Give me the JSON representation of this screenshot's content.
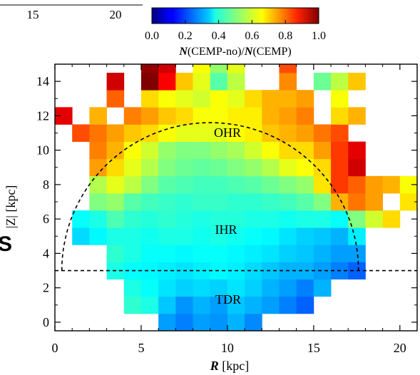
{
  "chart_data": {
    "type": "heatmap",
    "top_axis_fragment": {
      "ticks": [
        "15",
        "20"
      ]
    },
    "colorbar": {
      "label_prefix": "N",
      "label_mid": "(CEMP-no)/",
      "label_prefix2": "N",
      "label_suffix": "(CEMP)",
      "ticks": [
        "0.0",
        "0.2",
        "0.4",
        "0.6",
        "0.8",
        "1.0"
      ],
      "range": [
        0,
        1
      ],
      "colormap": "jet"
    },
    "xlabel_bold": "R",
    "xlabel_rest": " [kpc]",
    "ylabel": "|Z| [kpc]",
    "xlim": [
      0,
      21
    ],
    "ylim": [
      -0.5,
      15
    ],
    "xticks": [
      "0",
      "5",
      "10",
      "15",
      "20"
    ],
    "yticks": [
      "0",
      "2",
      "4",
      "6",
      "8",
      "10",
      "12",
      "14"
    ],
    "cell_size_kpc": 1.0,
    "annotations": [
      "OHR",
      "IHR",
      "TDR"
    ],
    "boundary_line": {
      "style": "dashed",
      "y_const": 3,
      "semicircle_center": [
        9,
        3
      ],
      "semicircle_radius": 8.6
    },
    "cells": [
      {
        "R": 6.5,
        "Z": 0,
        "v": 0.28
      },
      {
        "R": 7.5,
        "Z": 0,
        "v": 0.25
      },
      {
        "R": 8.5,
        "Z": 0,
        "v": 0.28
      },
      {
        "R": 9.5,
        "Z": 0,
        "v": 0.27
      },
      {
        "R": 10.5,
        "Z": 0,
        "v": 0.3
      },
      {
        "R": 11.5,
        "Z": 0,
        "v": 0.26
      },
      {
        "R": 4.5,
        "Z": 1,
        "v": 0.42
      },
      {
        "R": 5.5,
        "Z": 1,
        "v": 0.4
      },
      {
        "R": 6.5,
        "Z": 1,
        "v": 0.32
      },
      {
        "R": 7.5,
        "Z": 1,
        "v": 0.27
      },
      {
        "R": 8.5,
        "Z": 1,
        "v": 0.3
      },
      {
        "R": 9.5,
        "Z": 1,
        "v": 0.28
      },
      {
        "R": 10.5,
        "Z": 1,
        "v": 0.32
      },
      {
        "R": 11.5,
        "Z": 1,
        "v": 0.3
      },
      {
        "R": 12.5,
        "Z": 1,
        "v": 0.28
      },
      {
        "R": 13.5,
        "Z": 1,
        "v": 0.25
      },
      {
        "R": 14.5,
        "Z": 1,
        "v": 0.22
      },
      {
        "R": 4.5,
        "Z": 2,
        "v": 0.4
      },
      {
        "R": 5.5,
        "Z": 2,
        "v": 0.38
      },
      {
        "R": 6.5,
        "Z": 2,
        "v": 0.35
      },
      {
        "R": 7.5,
        "Z": 2,
        "v": 0.33
      },
      {
        "R": 8.5,
        "Z": 2,
        "v": 0.34
      },
      {
        "R": 9.5,
        "Z": 2,
        "v": 0.33
      },
      {
        "R": 10.5,
        "Z": 2,
        "v": 0.35
      },
      {
        "R": 11.5,
        "Z": 2,
        "v": 0.33
      },
      {
        "R": 12.5,
        "Z": 2,
        "v": 0.3
      },
      {
        "R": 13.5,
        "Z": 2,
        "v": 0.28
      },
      {
        "R": 14.5,
        "Z": 2,
        "v": 0.25
      },
      {
        "R": 15.5,
        "Z": 2,
        "v": 0.3
      },
      {
        "R": 3.5,
        "Z": 3,
        "v": 0.4
      },
      {
        "R": 4.5,
        "Z": 3,
        "v": 0.38
      },
      {
        "R": 5.5,
        "Z": 3,
        "v": 0.37
      },
      {
        "R": 6.5,
        "Z": 3,
        "v": 0.36
      },
      {
        "R": 7.5,
        "Z": 3,
        "v": 0.35
      },
      {
        "R": 8.5,
        "Z": 3,
        "v": 0.36
      },
      {
        "R": 9.5,
        "Z": 3,
        "v": 0.37
      },
      {
        "R": 10.5,
        "Z": 3,
        "v": 0.36
      },
      {
        "R": 11.5,
        "Z": 3,
        "v": 0.34
      },
      {
        "R": 12.5,
        "Z": 3,
        "v": 0.32
      },
      {
        "R": 13.5,
        "Z": 3,
        "v": 0.3
      },
      {
        "R": 14.5,
        "Z": 3,
        "v": 0.3
      },
      {
        "R": 15.5,
        "Z": 3,
        "v": 0.28
      },
      {
        "R": 16.5,
        "Z": 3,
        "v": 0.25
      },
      {
        "R": 17.5,
        "Z": 3,
        "v": 0.22
      },
      {
        "R": 3.5,
        "Z": 4,
        "v": 0.42
      },
      {
        "R": 4.5,
        "Z": 4,
        "v": 0.4
      },
      {
        "R": 5.5,
        "Z": 4,
        "v": 0.38
      },
      {
        "R": 6.5,
        "Z": 4,
        "v": 0.38
      },
      {
        "R": 7.5,
        "Z": 4,
        "v": 0.37
      },
      {
        "R": 8.5,
        "Z": 4,
        "v": 0.38
      },
      {
        "R": 9.5,
        "Z": 4,
        "v": 0.38
      },
      {
        "R": 10.5,
        "Z": 4,
        "v": 0.37
      },
      {
        "R": 11.5,
        "Z": 4,
        "v": 0.36
      },
      {
        "R": 12.5,
        "Z": 4,
        "v": 0.35
      },
      {
        "R": 13.5,
        "Z": 4,
        "v": 0.33
      },
      {
        "R": 14.5,
        "Z": 4,
        "v": 0.32
      },
      {
        "R": 15.5,
        "Z": 4,
        "v": 0.3
      },
      {
        "R": 16.5,
        "Z": 4,
        "v": 0.28
      },
      {
        "R": 17.5,
        "Z": 4,
        "v": 0.28
      },
      {
        "R": 1.5,
        "Z": 5,
        "v": 0.34
      },
      {
        "R": 2.5,
        "Z": 5,
        "v": 0.37
      },
      {
        "R": 3.5,
        "Z": 5,
        "v": 0.4
      },
      {
        "R": 4.5,
        "Z": 5,
        "v": 0.4
      },
      {
        "R": 5.5,
        "Z": 5,
        "v": 0.39
      },
      {
        "R": 6.5,
        "Z": 5,
        "v": 0.4
      },
      {
        "R": 7.5,
        "Z": 5,
        "v": 0.4
      },
      {
        "R": 8.5,
        "Z": 5,
        "v": 0.39
      },
      {
        "R": 9.5,
        "Z": 5,
        "v": 0.4
      },
      {
        "R": 10.5,
        "Z": 5,
        "v": 0.39
      },
      {
        "R": 11.5,
        "Z": 5,
        "v": 0.38
      },
      {
        "R": 12.5,
        "Z": 5,
        "v": 0.37
      },
      {
        "R": 13.5,
        "Z": 5,
        "v": 0.35
      },
      {
        "R": 14.5,
        "Z": 5,
        "v": 0.33
      },
      {
        "R": 15.5,
        "Z": 5,
        "v": 0.32
      },
      {
        "R": 16.5,
        "Z": 5,
        "v": 0.3
      },
      {
        "R": 17.5,
        "Z": 5,
        "v": 0.36
      },
      {
        "R": 1.5,
        "Z": 6,
        "v": 0.38
      },
      {
        "R": 2.5,
        "Z": 6,
        "v": 0.4
      },
      {
        "R": 3.5,
        "Z": 6,
        "v": 0.45
      },
      {
        "R": 4.5,
        "Z": 6,
        "v": 0.42
      },
      {
        "R": 5.5,
        "Z": 6,
        "v": 0.41
      },
      {
        "R": 6.5,
        "Z": 6,
        "v": 0.42
      },
      {
        "R": 7.5,
        "Z": 6,
        "v": 0.41
      },
      {
        "R": 8.5,
        "Z": 6,
        "v": 0.4
      },
      {
        "R": 9.5,
        "Z": 6,
        "v": 0.41
      },
      {
        "R": 10.5,
        "Z": 6,
        "v": 0.41
      },
      {
        "R": 11.5,
        "Z": 6,
        "v": 0.4
      },
      {
        "R": 12.5,
        "Z": 6,
        "v": 0.4
      },
      {
        "R": 13.5,
        "Z": 6,
        "v": 0.39
      },
      {
        "R": 14.5,
        "Z": 6,
        "v": 0.4
      },
      {
        "R": 15.5,
        "Z": 6,
        "v": 0.4
      },
      {
        "R": 16.5,
        "Z": 6,
        "v": 0.38
      },
      {
        "R": 17.5,
        "Z": 6,
        "v": 0.5
      },
      {
        "R": 18.5,
        "Z": 6,
        "v": 0.58
      },
      {
        "R": 19.5,
        "Z": 6,
        "v": 0.66
      },
      {
        "R": 2.5,
        "Z": 7,
        "v": 0.5
      },
      {
        "R": 3.5,
        "Z": 7,
        "v": 0.52
      },
      {
        "R": 4.5,
        "Z": 7,
        "v": 0.46
      },
      {
        "R": 5.5,
        "Z": 7,
        "v": 0.44
      },
      {
        "R": 6.5,
        "Z": 7,
        "v": 0.43
      },
      {
        "R": 7.5,
        "Z": 7,
        "v": 0.42
      },
      {
        "R": 8.5,
        "Z": 7,
        "v": 0.43
      },
      {
        "R": 9.5,
        "Z": 7,
        "v": 0.43
      },
      {
        "R": 10.5,
        "Z": 7,
        "v": 0.42
      },
      {
        "R": 11.5,
        "Z": 7,
        "v": 0.42
      },
      {
        "R": 12.5,
        "Z": 7,
        "v": 0.43
      },
      {
        "R": 13.5,
        "Z": 7,
        "v": 0.44
      },
      {
        "R": 14.5,
        "Z": 7,
        "v": 0.46
      },
      {
        "R": 15.5,
        "Z": 7,
        "v": 0.5
      },
      {
        "R": 16.5,
        "Z": 7,
        "v": 0.7
      },
      {
        "R": 17.5,
        "Z": 7,
        "v": 0.76
      },
      {
        "R": 18.5,
        "Z": 7,
        "v": 0.72
      },
      {
        "R": 20.5,
        "Z": 7,
        "v": 0.65
      },
      {
        "R": 2.5,
        "Z": 8,
        "v": 0.55
      },
      {
        "R": 3.5,
        "Z": 8,
        "v": 0.6
      },
      {
        "R": 4.5,
        "Z": 8,
        "v": 0.56
      },
      {
        "R": 5.5,
        "Z": 8,
        "v": 0.5
      },
      {
        "R": 6.5,
        "Z": 8,
        "v": 0.46
      },
      {
        "R": 7.5,
        "Z": 8,
        "v": 0.45
      },
      {
        "R": 8.5,
        "Z": 8,
        "v": 0.44
      },
      {
        "R": 9.5,
        "Z": 8,
        "v": 0.44
      },
      {
        "R": 10.5,
        "Z": 8,
        "v": 0.45
      },
      {
        "R": 11.5,
        "Z": 8,
        "v": 0.46
      },
      {
        "R": 12.5,
        "Z": 8,
        "v": 0.48
      },
      {
        "R": 13.5,
        "Z": 8,
        "v": 0.5
      },
      {
        "R": 14.5,
        "Z": 8,
        "v": 0.52
      },
      {
        "R": 15.5,
        "Z": 8,
        "v": 0.65
      },
      {
        "R": 16.5,
        "Z": 8,
        "v": 0.82
      },
      {
        "R": 17.5,
        "Z": 8,
        "v": 0.78
      },
      {
        "R": 18.5,
        "Z": 8,
        "v": 0.72
      },
      {
        "R": 19.5,
        "Z": 8,
        "v": 0.7
      },
      {
        "R": 20.5,
        "Z": 8,
        "v": 0.62
      },
      {
        "R": 2.5,
        "Z": 9,
        "v": 0.72
      },
      {
        "R": 3.5,
        "Z": 9,
        "v": 0.66
      },
      {
        "R": 4.5,
        "Z": 9,
        "v": 0.6
      },
      {
        "R": 5.5,
        "Z": 9,
        "v": 0.55
      },
      {
        "R": 6.5,
        "Z": 9,
        "v": 0.5
      },
      {
        "R": 7.5,
        "Z": 9,
        "v": 0.48
      },
      {
        "R": 8.5,
        "Z": 9,
        "v": 0.47
      },
      {
        "R": 9.5,
        "Z": 9,
        "v": 0.48
      },
      {
        "R": 10.5,
        "Z": 9,
        "v": 0.5
      },
      {
        "R": 11.5,
        "Z": 9,
        "v": 0.52
      },
      {
        "R": 12.5,
        "Z": 9,
        "v": 0.55
      },
      {
        "R": 13.5,
        "Z": 9,
        "v": 0.6
      },
      {
        "R": 14.5,
        "Z": 9,
        "v": 0.62
      },
      {
        "R": 15.5,
        "Z": 9,
        "v": 0.66
      },
      {
        "R": 16.5,
        "Z": 9,
        "v": 0.82
      },
      {
        "R": 17.5,
        "Z": 9,
        "v": 0.92
      },
      {
        "R": 2.5,
        "Z": 10,
        "v": 0.75
      },
      {
        "R": 3.5,
        "Z": 10,
        "v": 0.7
      },
      {
        "R": 4.5,
        "Z": 10,
        "v": 0.62
      },
      {
        "R": 5.5,
        "Z": 10,
        "v": 0.58
      },
      {
        "R": 6.5,
        "Z": 10,
        "v": 0.52
      },
      {
        "R": 7.5,
        "Z": 10,
        "v": 0.5
      },
      {
        "R": 8.5,
        "Z": 10,
        "v": 0.5
      },
      {
        "R": 9.5,
        "Z": 10,
        "v": 0.52
      },
      {
        "R": 10.5,
        "Z": 10,
        "v": 0.54
      },
      {
        "R": 11.5,
        "Z": 10,
        "v": 0.58
      },
      {
        "R": 12.5,
        "Z": 10,
        "v": 0.62
      },
      {
        "R": 13.5,
        "Z": 10,
        "v": 0.66
      },
      {
        "R": 14.5,
        "Z": 10,
        "v": 0.66
      },
      {
        "R": 15.5,
        "Z": 10,
        "v": 0.72
      },
      {
        "R": 16.5,
        "Z": 10,
        "v": 0.82
      },
      {
        "R": 17.5,
        "Z": 10,
        "v": 0.9
      },
      {
        "R": 1.5,
        "Z": 11,
        "v": 0.8
      },
      {
        "R": 2.5,
        "Z": 11,
        "v": 0.76
      },
      {
        "R": 3.5,
        "Z": 11,
        "v": 0.72
      },
      {
        "R": 4.5,
        "Z": 11,
        "v": 0.68
      },
      {
        "R": 5.5,
        "Z": 11,
        "v": 0.66
      },
      {
        "R": 6.5,
        "Z": 11,
        "v": 0.62
      },
      {
        "R": 7.5,
        "Z": 11,
        "v": 0.6
      },
      {
        "R": 8.5,
        "Z": 11,
        "v": 0.6
      },
      {
        "R": 9.5,
        "Z": 11,
        "v": 0.6
      },
      {
        "R": 10.5,
        "Z": 11,
        "v": 0.62
      },
      {
        "R": 11.5,
        "Z": 11,
        "v": 0.64
      },
      {
        "R": 12.5,
        "Z": 11,
        "v": 0.68
      },
      {
        "R": 13.5,
        "Z": 11,
        "v": 0.7
      },
      {
        "R": 14.5,
        "Z": 11,
        "v": 0.72
      },
      {
        "R": 15.5,
        "Z": 11,
        "v": 0.76
      },
      {
        "R": 16.5,
        "Z": 11,
        "v": 0.8
      },
      {
        "R": 0.5,
        "Z": 12,
        "v": 0.9
      },
      {
        "R": 2.5,
        "Z": 12,
        "v": 0.7
      },
      {
        "R": 4.5,
        "Z": 12,
        "v": 0.75
      },
      {
        "R": 5.5,
        "Z": 12,
        "v": 0.72
      },
      {
        "R": 6.5,
        "Z": 12,
        "v": 0.68
      },
      {
        "R": 7.5,
        "Z": 12,
        "v": 0.66
      },
      {
        "R": 8.5,
        "Z": 12,
        "v": 0.62
      },
      {
        "R": 9.5,
        "Z": 12,
        "v": 0.62
      },
      {
        "R": 10.5,
        "Z": 12,
        "v": 0.64
      },
      {
        "R": 11.5,
        "Z": 12,
        "v": 0.64
      },
      {
        "R": 12.5,
        "Z": 12,
        "v": 0.7
      },
      {
        "R": 13.5,
        "Z": 12,
        "v": 0.72
      },
      {
        "R": 14.5,
        "Z": 12,
        "v": 0.75
      },
      {
        "R": 16.5,
        "Z": 12,
        "v": 0.66
      },
      {
        "R": 17.5,
        "Z": 12,
        "v": 0.7
      },
      {
        "R": 3.5,
        "Z": 13,
        "v": 0.78
      },
      {
        "R": 5.5,
        "Z": 13,
        "v": 0.66
      },
      {
        "R": 6.5,
        "Z": 13,
        "v": 0.62
      },
      {
        "R": 7.5,
        "Z": 13,
        "v": 0.6
      },
      {
        "R": 8.5,
        "Z": 13,
        "v": 0.58
      },
      {
        "R": 9.5,
        "Z": 13,
        "v": 0.62
      },
      {
        "R": 10.5,
        "Z": 13,
        "v": 0.6
      },
      {
        "R": 11.5,
        "Z": 13,
        "v": 0.66
      },
      {
        "R": 12.5,
        "Z": 13,
        "v": 0.7
      },
      {
        "R": 13.5,
        "Z": 13,
        "v": 0.7
      },
      {
        "R": 14.5,
        "Z": 13,
        "v": 0.72
      },
      {
        "R": 16.5,
        "Z": 13,
        "v": 0.62
      },
      {
        "R": 3.5,
        "Z": 14,
        "v": 0.92
      },
      {
        "R": 5.5,
        "Z": 14,
        "v": 1.0
      },
      {
        "R": 6.5,
        "Z": 14,
        "v": 0.88
      },
      {
        "R": 7.5,
        "Z": 14,
        "v": 0.68
      },
      {
        "R": 8.5,
        "Z": 14,
        "v": 0.6
      },
      {
        "R": 9.5,
        "Z": 14,
        "v": 0.46
      },
      {
        "R": 10.5,
        "Z": 14,
        "v": 0.56
      },
      {
        "R": 13.5,
        "Z": 14,
        "v": 0.74
      },
      {
        "R": 15.5,
        "Z": 14,
        "v": 0.48
      },
      {
        "R": 16.5,
        "Z": 14,
        "v": 0.56
      },
      {
        "R": 17.5,
        "Z": 14,
        "v": 0.68
      },
      {
        "R": 5.5,
        "Z": 15,
        "v": 0.98
      },
      {
        "R": 6.5,
        "Z": 15,
        "v": 0.92
      },
      {
        "R": 8.5,
        "Z": 15,
        "v": 0.62
      },
      {
        "R": 9.5,
        "Z": 15,
        "v": 0.52
      },
      {
        "R": 10.5,
        "Z": 15,
        "v": 0.6
      },
      {
        "R": 13.5,
        "Z": 15,
        "v": 0.8
      }
    ]
  }
}
